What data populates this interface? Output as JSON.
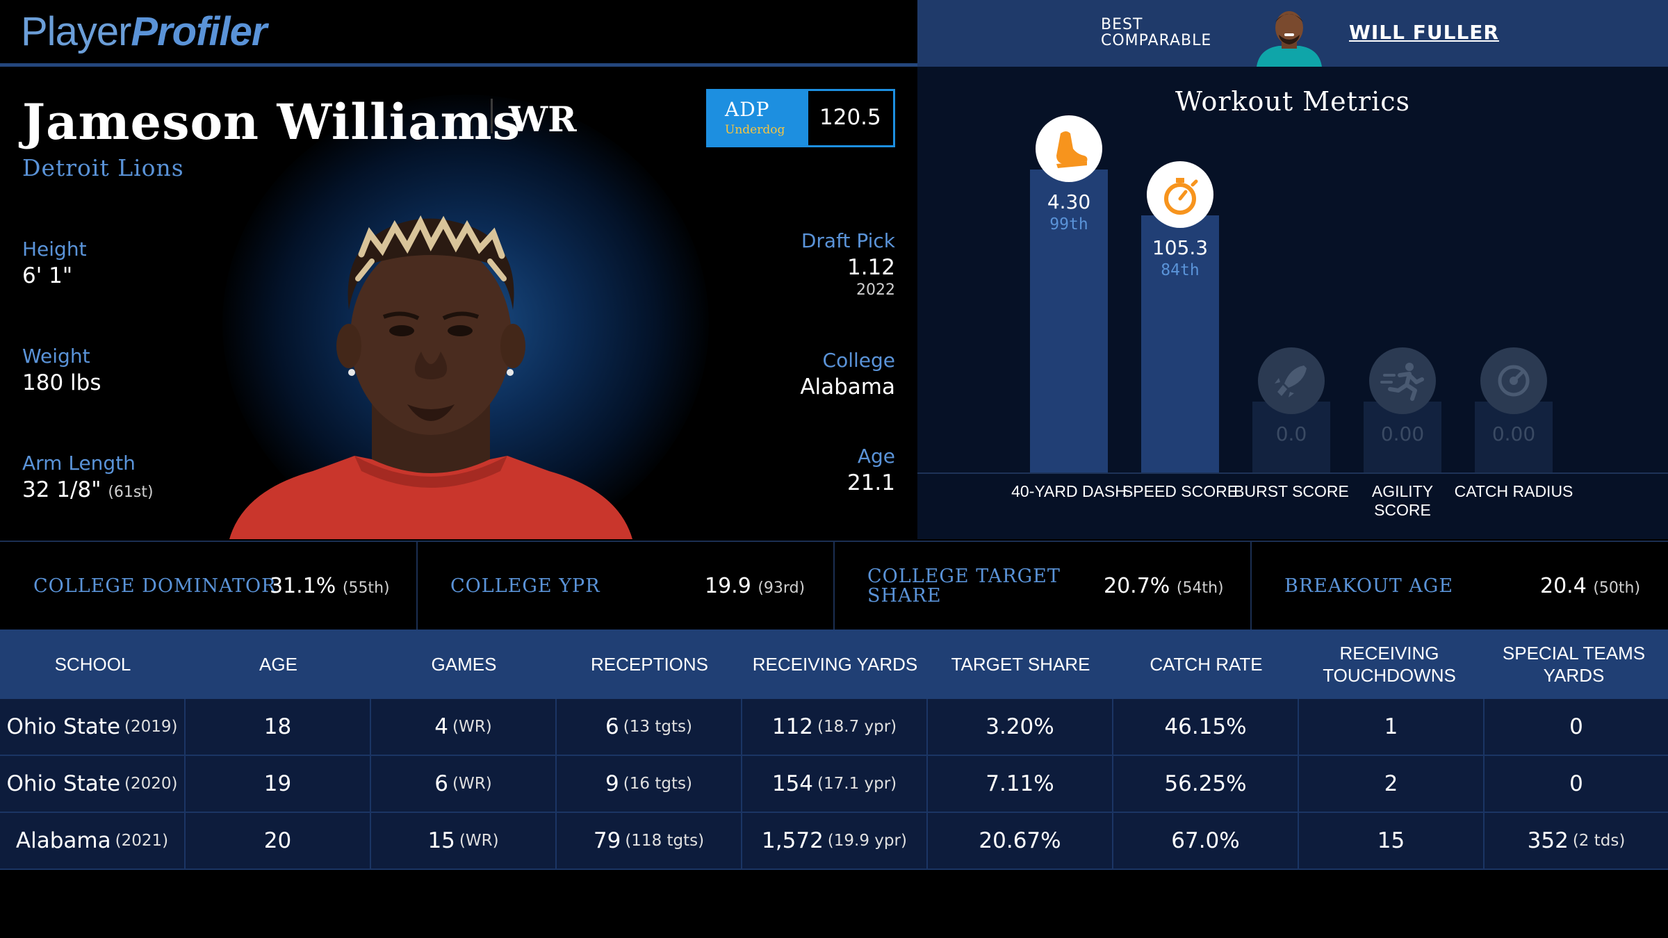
{
  "brand": {
    "part1": "Player",
    "part2": "Profiler"
  },
  "comparable": {
    "label": "BEST COMPARABLE",
    "name": "WILL FULLER"
  },
  "player": {
    "name": "Jameson Williams",
    "position": "WR",
    "team": "Detroit Lions",
    "adp": {
      "label": "ADP",
      "source": "Underdog",
      "value": "120.5"
    },
    "left_stats": [
      {
        "label": "Height",
        "value": "6' 1\"",
        "extra": ""
      },
      {
        "label": "Weight",
        "value": "180 lbs",
        "extra": ""
      },
      {
        "label": "Arm Length",
        "value": "32 1/8\"",
        "extra": "(61st)"
      }
    ],
    "right_stats": [
      {
        "label": "Draft Pick",
        "value": "1.12",
        "sub": "2022"
      },
      {
        "label": "College",
        "value": "Alabama",
        "sub": ""
      },
      {
        "label": "Age",
        "value": "21.1",
        "sub": ""
      }
    ]
  },
  "workout": {
    "title": "Workout Metrics",
    "metrics": [
      {
        "label": "40-YARD DASH",
        "value": "4.30",
        "percentile": "99th",
        "percentile_num": 99,
        "icon": "running-shoe-icon",
        "active": true
      },
      {
        "label": "SPEED SCORE",
        "value": "105.3",
        "percentile": "84th",
        "percentile_num": 84,
        "icon": "stopwatch-icon",
        "active": true
      },
      {
        "label": "BURST SCORE",
        "value": "0.0",
        "percentile": "",
        "percentile_num": 0,
        "icon": "rocket-icon",
        "active": false
      },
      {
        "label": "AGILITY SCORE",
        "value": "0.00",
        "percentile": "",
        "percentile_num": 0,
        "icon": "agility-runner-icon",
        "active": false
      },
      {
        "label": "CATCH RADIUS",
        "value": "0.00",
        "percentile": "",
        "percentile_num": 0,
        "icon": "target-icon",
        "active": false
      }
    ]
  },
  "college_summary": [
    {
      "label": "COLLEGE DOMINATOR",
      "value": "31.1%",
      "rank": "(55th)"
    },
    {
      "label": "COLLEGE YPR",
      "value": "19.9",
      "rank": "(93rd)"
    },
    {
      "label": "COLLEGE TARGET SHARE",
      "value": "20.7%",
      "rank": "(54th)"
    },
    {
      "label": "BREAKOUT AGE",
      "value": "20.4",
      "rank": "(50th)"
    }
  ],
  "table": {
    "headers": [
      "SCHOOL",
      "AGE",
      "GAMES",
      "RECEPTIONS",
      "RECEIVING YARDS",
      "TARGET SHARE",
      "CATCH RATE",
      "RECEIVING TOUCHDOWNS",
      "SPECIAL TEAMS YARDS"
    ],
    "rows": [
      {
        "school": "Ohio State",
        "year": "(2019)",
        "age": "18",
        "games": "4",
        "games_pos": "(WR)",
        "receptions": "6",
        "targets": "(13 tgts)",
        "yards": "112",
        "ypr": "(18.7 ypr)",
        "target_share": "3.20%",
        "catch_rate": "46.15%",
        "tds": "1",
        "st_yards": "0",
        "st_tds": ""
      },
      {
        "school": "Ohio State",
        "year": "(2020)",
        "age": "19",
        "games": "6",
        "games_pos": "(WR)",
        "receptions": "9",
        "targets": "(16 tgts)",
        "yards": "154",
        "ypr": "(17.1 ypr)",
        "target_share": "7.11%",
        "catch_rate": "56.25%",
        "tds": "2",
        "st_yards": "0",
        "st_tds": ""
      },
      {
        "school": "Alabama",
        "year": "(2021)",
        "age": "20",
        "games": "15",
        "games_pos": "(WR)",
        "receptions": "79",
        "targets": "(118 tgts)",
        "yards": "1,572",
        "ypr": "(19.9 ypr)",
        "target_share": "20.67%",
        "catch_rate": "67.0%",
        "tds": "15",
        "st_yards": "352",
        "st_tds": "(2 tds)"
      }
    ]
  },
  "colors": {
    "accent_blue": "#5a93d8",
    "adp_blue": "#1d8fe0",
    "bar_blue": "#213f75",
    "icon_orange": "#f7941d"
  }
}
